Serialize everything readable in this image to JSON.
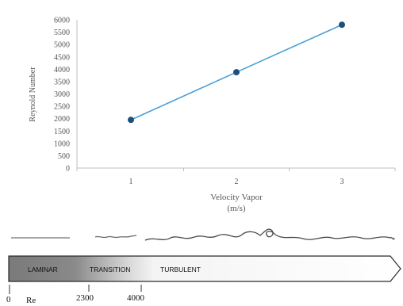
{
  "chart_data": {
    "type": "line",
    "categories": [
      "1",
      "2",
      "3"
    ],
    "series": [
      {
        "values": [
          1950,
          3880,
          5800
        ],
        "color": "#4a9fd8",
        "marker_color": "#1f4e79"
      }
    ],
    "title": "",
    "xlabel_line1": "Velocity Vapor",
    "xlabel_line2": "(m/s)",
    "ylabel": "Reynold Number",
    "ylim": [
      0,
      6000
    ],
    "yticks": [
      "0",
      "500",
      "1000",
      "1500",
      "2000",
      "2500",
      "3000",
      "3500",
      "4000",
      "4500",
      "5000",
      "5500",
      "6000"
    ],
    "grid": false
  },
  "flow_diagram": {
    "regimes": [
      "LAMINAR",
      "TRANSITION",
      "TURBULENT"
    ],
    "axis_labels": [
      "0",
      "2300",
      "4000"
    ],
    "axis_name": "Re"
  }
}
